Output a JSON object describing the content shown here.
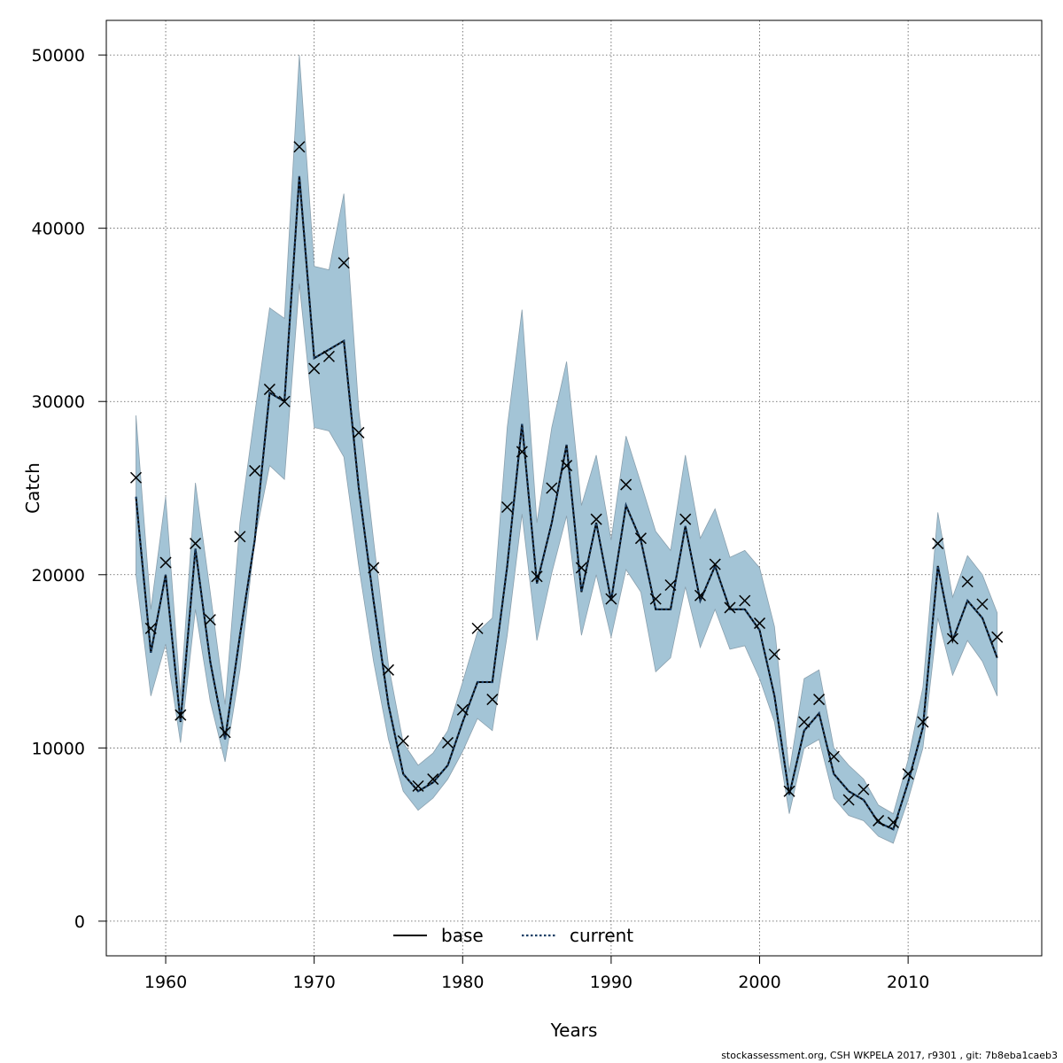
{
  "chart_data": {
    "type": "line",
    "xlabel": "Years",
    "ylabel": "Catch",
    "xlim": [
      1956,
      2019
    ],
    "ylim": [
      -2000,
      52000
    ],
    "x_ticks": [
      1960,
      1970,
      1980,
      1990,
      2000,
      2010
    ],
    "y_ticks": [
      0,
      10000,
      20000,
      30000,
      40000,
      50000
    ],
    "grid": true,
    "legend_position": "bottom-center",
    "colors": {
      "band": "#a3c4d6",
      "band_edge": "#8aa0ae",
      "current": "#1b3f66",
      "base": "#000000",
      "observed": "#000000"
    },
    "x": [
      1958,
      1959,
      1960,
      1961,
      1962,
      1963,
      1964,
      1965,
      1966,
      1967,
      1968,
      1969,
      1970,
      1971,
      1972,
      1973,
      1974,
      1975,
      1976,
      1977,
      1978,
      1979,
      1980,
      1981,
      1982,
      1983,
      1984,
      1985,
      1986,
      1987,
      1988,
      1989,
      1990,
      1991,
      1992,
      1993,
      1994,
      1995,
      1996,
      1997,
      1998,
      1999,
      2000,
      2001,
      2002,
      2003,
      2004,
      2005,
      2006,
      2007,
      2008,
      2009,
      2010,
      2011,
      2012,
      2013,
      2014,
      2015,
      2016
    ],
    "series": [
      {
        "name": "current",
        "style": "dotted",
        "values": [
          24500,
          15500,
          20000,
          11500,
          21500,
          15000,
          10500,
          16500,
          22000,
          30500,
          30000,
          43000,
          32500,
          33000,
          33500,
          25000,
          18500,
          12500,
          8500,
          7500,
          8000,
          9000,
          11500,
          13800,
          13800,
          20500,
          28700,
          19500,
          23000,
          27500,
          19000,
          23000,
          18500,
          24000,
          22000,
          18000,
          18000,
          22800,
          18500,
          20500,
          18000,
          18000,
          16800,
          13000,
          7300,
          11000,
          12000,
          8500,
          7500,
          7000,
          5700,
          5300,
          8000,
          11200,
          20500,
          16200,
          18500,
          17500,
          15200
        ]
      },
      {
        "name": "base",
        "style": "solid",
        "values": [
          24500,
          15500,
          20000,
          11500,
          21500,
          15000,
          10500,
          16500,
          22000,
          30500,
          30000,
          43000,
          32500,
          33000,
          33500,
          25000,
          18500,
          12500,
          8500,
          7500,
          8000,
          9000,
          11500,
          13800,
          13800,
          20500,
          28700,
          19500,
          23000,
          27500,
          19000,
          23000,
          18500,
          24000,
          22000,
          18000,
          18000,
          22800,
          18500,
          20500,
          18000,
          18000,
          16800,
          13000,
          7300,
          11000,
          12000,
          8500,
          7500,
          7000,
          5700,
          5300,
          8000,
          11200,
          20500,
          16200,
          18500,
          17500,
          15200
        ]
      }
    ],
    "band_upper": [
      29200,
      18000,
      24500,
      13000,
      25300,
      19000,
      12500,
      23000,
      29300,
      35400,
      34800,
      50000,
      37800,
      37600,
      42000,
      29500,
      22000,
      14800,
      10300,
      9000,
      9700,
      11000,
      13800,
      16700,
      17500,
      28500,
      35300,
      23000,
      28500,
      32300,
      24000,
      26900,
      22000,
      28000,
      25300,
      22500,
      21400,
      26900,
      22100,
      23800,
      21000,
      21400,
      20400,
      17000,
      8600,
      14000,
      14500,
      10000,
      9000,
      8200,
      6700,
      6200,
      9300,
      13500,
      23600,
      18700,
      21100,
      20000,
      17800
    ],
    "band_lower": [
      20000,
      13000,
      16000,
      10300,
      18000,
      12700,
      9200,
      14500,
      22000,
      26300,
      25500,
      36800,
      28500,
      28300,
      26800,
      20500,
      15000,
      10500,
      7500,
      6400,
      7100,
      8200,
      9800,
      11700,
      11000,
      16500,
      23500,
      16200,
      20100,
      23400,
      16500,
      20000,
      16400,
      20300,
      19000,
      14400,
      15200,
      19300,
      15800,
      18000,
      15700,
      15900,
      14000,
      11500,
      6200,
      10000,
      10500,
      7100,
      6100,
      5800,
      4900,
      4500,
      7000,
      10000,
      17500,
      14200,
      16200,
      15000,
      13000
    ],
    "observed": [
      25600,
      16900,
      20700,
      11900,
      21800,
      17400,
      10900,
      22200,
      26000,
      30700,
      30000,
      44700,
      31900,
      32600,
      38000,
      28200,
      20400,
      14500,
      10400,
      7800,
      8200,
      10300,
      12200,
      16900,
      12800,
      23900,
      27100,
      19900,
      25000,
      26300,
      20400,
      23200,
      18600,
      25200,
      22100,
      18600,
      19400,
      23200,
      18800,
      20600,
      18100,
      18500,
      17200,
      15400,
      7500,
      11500,
      12800,
      9500,
      7000,
      7600,
      5800,
      5700,
      8500,
      11500,
      21800,
      16300,
      19600,
      18300,
      16400
    ],
    "legend": [
      "base",
      "current"
    ],
    "footer_note": "stockassessment.org, CSH  WKPELA  2017, r9301 , git: 7b8eba1caeb3"
  }
}
